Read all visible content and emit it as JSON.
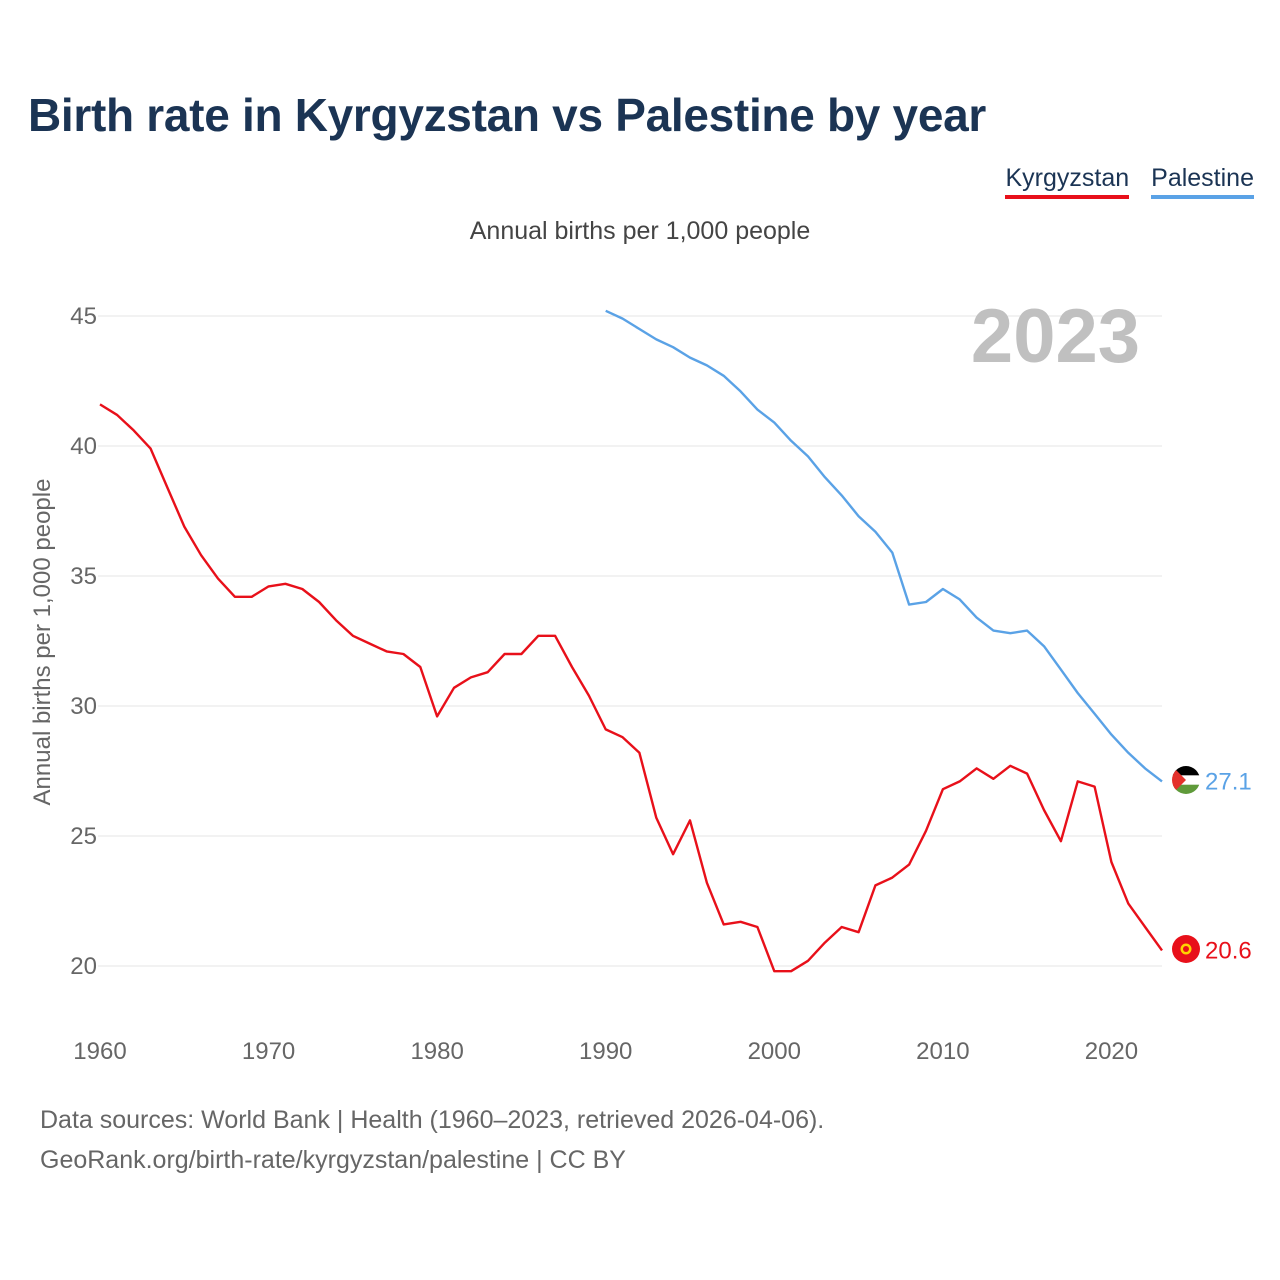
{
  "title": "Birth rate in Kyrgyzstan vs Palestine by year",
  "subtitle": "Annual births per 1,000 people",
  "legend": [
    {
      "label": "Kyrgyzstan",
      "color": "#e8101a"
    },
    {
      "label": "Palestine",
      "color": "#5aa2e6"
    }
  ],
  "year_label": "2023",
  "footer": {
    "line1": "Data sources: World Bank | Health (1960–2023, retrieved 2026-04-06).",
    "line2": "GeoRank.org/birth-rate/kyrgyzstan/palestine | CC BY"
  },
  "chart_data": {
    "type": "line",
    "title": "Birth rate in Kyrgyzstan vs Palestine by year",
    "xlabel": "",
    "ylabel": "Annual births per 1,000 people",
    "xlim": [
      1960,
      2023
    ],
    "ylim": [
      18,
      47
    ],
    "x_ticks": [
      1960,
      1970,
      1980,
      1990,
      2000,
      2010,
      2020
    ],
    "y_ticks": [
      20,
      25,
      30,
      35,
      40,
      45
    ],
    "grid": true,
    "legend_position": "top-right",
    "series": [
      {
        "name": "Kyrgyzstan",
        "color": "#e8101a",
        "end_label": "20.6",
        "x": [
          1960,
          1961,
          1962,
          1963,
          1964,
          1965,
          1966,
          1967,
          1968,
          1969,
          1970,
          1971,
          1972,
          1973,
          1974,
          1975,
          1976,
          1977,
          1978,
          1979,
          1980,
          1981,
          1982,
          1983,
          1984,
          1985,
          1986,
          1987,
          1988,
          1989,
          1990,
          1991,
          1992,
          1993,
          1994,
          1995,
          1996,
          1997,
          1998,
          1999,
          2000,
          2001,
          2002,
          2003,
          2004,
          2005,
          2006,
          2007,
          2008,
          2009,
          2010,
          2011,
          2012,
          2013,
          2014,
          2015,
          2016,
          2017,
          2018,
          2019,
          2020,
          2021,
          2022,
          2023
        ],
        "values": [
          41.6,
          41.2,
          40.6,
          39.9,
          38.4,
          36.9,
          35.8,
          34.9,
          34.2,
          34.2,
          34.6,
          34.7,
          34.5,
          34.0,
          33.3,
          32.7,
          32.4,
          32.1,
          32.0,
          31.5,
          29.6,
          30.7,
          31.1,
          31.3,
          32.0,
          32.0,
          32.7,
          32.7,
          31.5,
          30.4,
          29.1,
          28.8,
          28.2,
          25.7,
          24.3,
          25.6,
          23.2,
          21.6,
          21.7,
          21.5,
          19.8,
          19.8,
          20.2,
          20.9,
          21.5,
          21.3,
          23.1,
          23.4,
          23.9,
          25.2,
          26.8,
          27.1,
          27.6,
          27.2,
          27.7,
          27.4,
          26.0,
          24.8,
          27.1,
          26.9,
          24.0,
          22.4,
          21.5,
          20.6
        ]
      },
      {
        "name": "Palestine",
        "color": "#5aa2e6",
        "end_label": "27.1",
        "x": [
          1990,
          1991,
          1992,
          1993,
          1994,
          1995,
          1996,
          1997,
          1998,
          1999,
          2000,
          2001,
          2002,
          2003,
          2004,
          2005,
          2006,
          2007,
          2008,
          2009,
          2010,
          2011,
          2012,
          2013,
          2014,
          2015,
          2016,
          2017,
          2018,
          2019,
          2020,
          2021,
          2022,
          2023
        ],
        "values": [
          45.2,
          44.9,
          44.5,
          44.1,
          43.8,
          43.4,
          43.1,
          42.7,
          42.1,
          41.4,
          40.9,
          40.2,
          39.6,
          38.8,
          38.1,
          37.3,
          36.7,
          35.9,
          33.9,
          34.0,
          34.5,
          34.1,
          33.4,
          32.9,
          32.8,
          32.9,
          32.3,
          31.4,
          30.5,
          29.7,
          28.9,
          28.2,
          27.6,
          27.1
        ]
      }
    ]
  }
}
